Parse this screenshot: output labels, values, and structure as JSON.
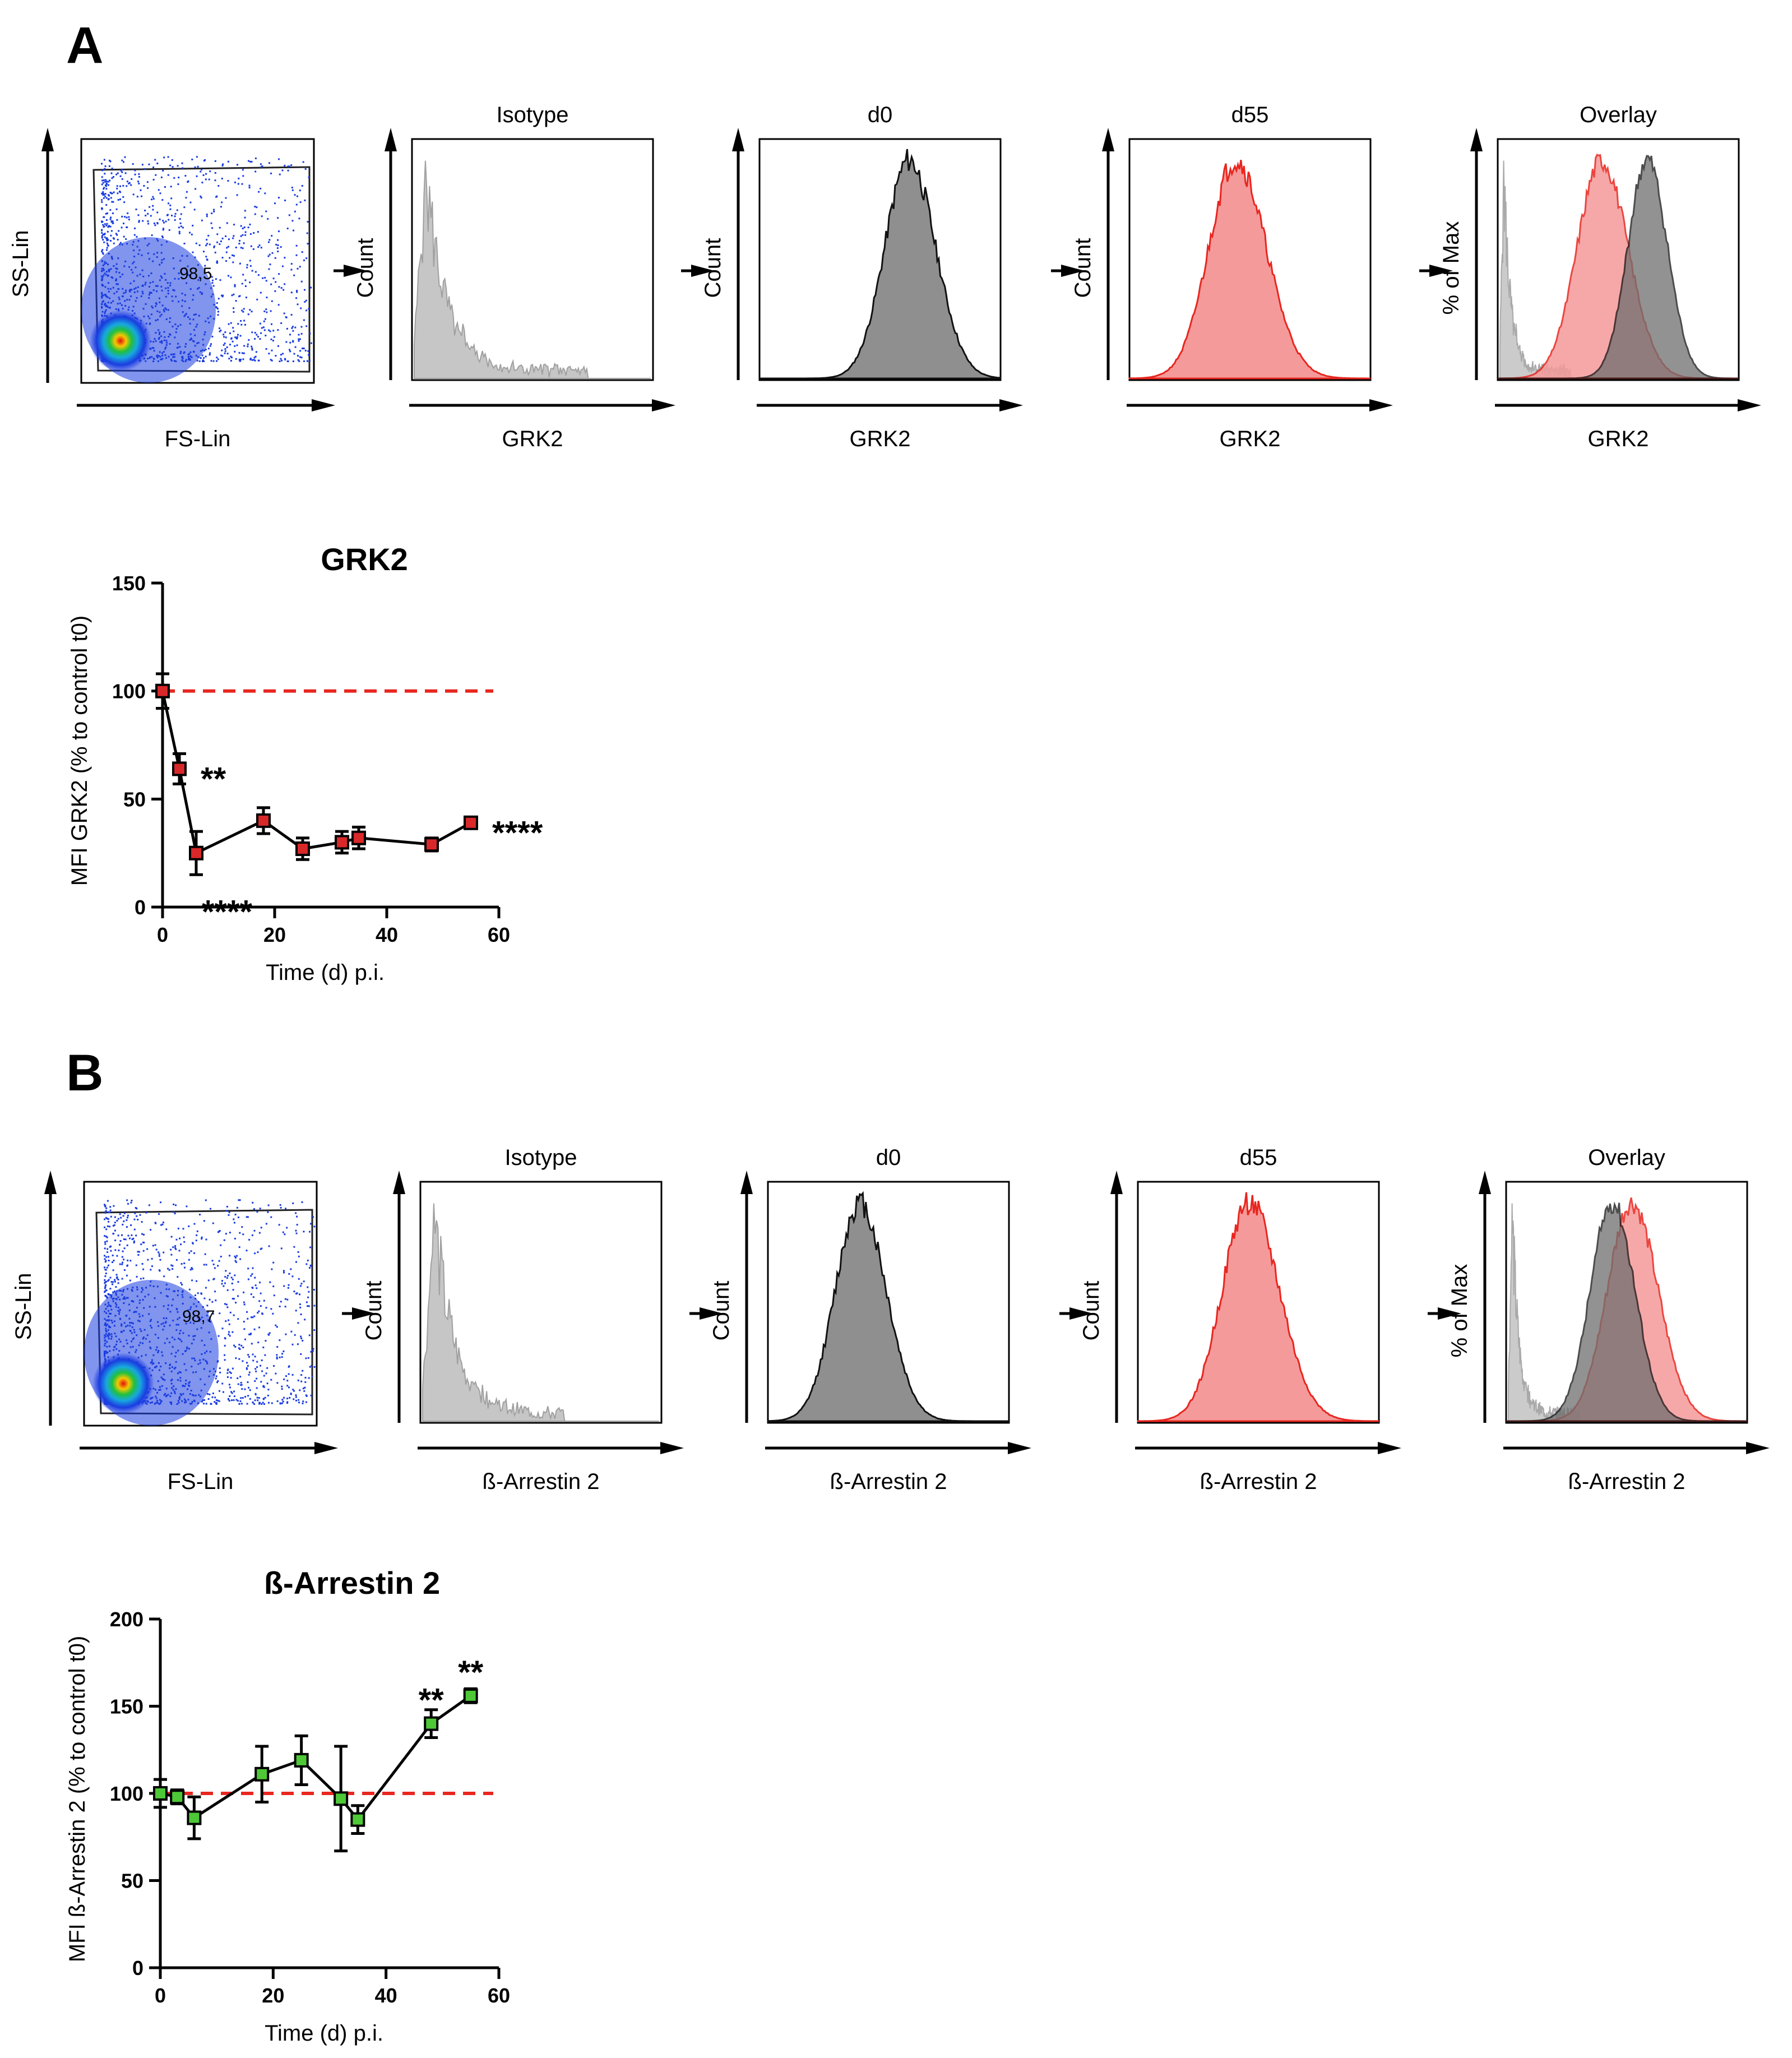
{
  "colors": {
    "isotype": "#c6c6c6",
    "isotype_line": "#a0a0a0",
    "d0_fill": "#8f8f8f",
    "d55_fill": "#f59a9a",
    "d55_line": "#e8261f",
    "grk2_marker": "#d8282a",
    "arrestin_marker": "#4ec837",
    "dashed": "#e8261f"
  },
  "panels": [
    {
      "label": "A",
      "marker": "grk2_marker",
      "flow": {
        "scatter": {
          "xlabel": "FS-Lin",
          "ylabel": "SS-Lin",
          "gate_value": "98,5"
        },
        "histograms": [
          {
            "kind": "isotype",
            "title": "Isotype",
            "ylabel": "Count",
            "xlabel": "GRK2"
          },
          {
            "kind": "d0",
            "title": "d0",
            "ylabel": "Count",
            "xlabel": "GRK2"
          },
          {
            "kind": "d55",
            "title": "d55",
            "ylabel": "Count",
            "xlabel": "GRK2"
          },
          {
            "kind": "overlay",
            "title": "Overlay",
            "ylabel": "% of Max",
            "xlabel": "GRK2"
          }
        ]
      }
    },
    {
      "label": "B",
      "marker": "arrestin_marker",
      "flow": {
        "scatter": {
          "xlabel": "FS-Lin",
          "ylabel": "SS-Lin",
          "gate_value": "98,7"
        },
        "histograms": [
          {
            "kind": "isotype",
            "title": "Isotype",
            "ylabel": "Count",
            "xlabel": "ß-Arrestin 2"
          },
          {
            "kind": "d0",
            "title": "d0",
            "ylabel": "Count",
            "xlabel": "ß-Arrestin 2"
          },
          {
            "kind": "d55",
            "title": "d55",
            "ylabel": "Count",
            "xlabel": "ß-Arrestin 2"
          },
          {
            "kind": "overlay",
            "title": "Overlay",
            "ylabel": "% of Max",
            "xlabel": "ß-Arrestin 2"
          }
        ]
      }
    }
  ],
  "chart_data": [
    {
      "type": "line",
      "title": "GRK2",
      "xlabel": "Time (d) p.i.",
      "ylabel": "MFI GRK2 (% to control t0)",
      "xlim": [
        0,
        60
      ],
      "ylim": [
        0,
        150
      ],
      "xticks": [
        0,
        20,
        40,
        60
      ],
      "yticks": [
        0,
        50,
        100,
        150
      ],
      "reference_line": 100,
      "series": [
        {
          "name": "GRK2",
          "x": [
            0,
            3,
            6,
            18,
            25,
            32,
            35,
            48,
            55
          ],
          "y": [
            100,
            64,
            25,
            40,
            27,
            30,
            32,
            29,
            39
          ],
          "err": [
            8,
            7,
            10,
            6,
            5,
            5,
            5,
            3,
            2
          ]
        }
      ],
      "annotations": [
        {
          "x": 3,
          "y": 64,
          "text": "**",
          "pos": "right"
        },
        {
          "x": 6,
          "y": 25,
          "text": "****",
          "pos": "below"
        },
        {
          "x": 55,
          "y": 39,
          "text": "****",
          "pos": "right"
        }
      ]
    },
    {
      "type": "line",
      "title": "ß-Arrestin 2",
      "xlabel": "Time (d) p.i.",
      "ylabel": "MFI ß-Arrestin 2 (% to control t0)",
      "xlim": [
        0,
        60
      ],
      "ylim": [
        0,
        200
      ],
      "xticks": [
        0,
        20,
        40,
        60
      ],
      "yticks": [
        0,
        50,
        100,
        150,
        200
      ],
      "reference_line": 100,
      "series": [
        {
          "name": "ß-Arrestin 2",
          "x": [
            0,
            3,
            6,
            18,
            25,
            32,
            35,
            48,
            55
          ],
          "y": [
            100,
            98,
            86,
            111,
            119,
            97,
            85,
            140,
            156
          ],
          "err": [
            8,
            4,
            12,
            16,
            14,
            30,
            8,
            8,
            4
          ]
        }
      ],
      "annotations": [
        {
          "x": 48,
          "y": 140,
          "text": "**",
          "pos": "above"
        },
        {
          "x": 55,
          "y": 156,
          "text": "**",
          "pos": "above"
        }
      ]
    }
  ]
}
